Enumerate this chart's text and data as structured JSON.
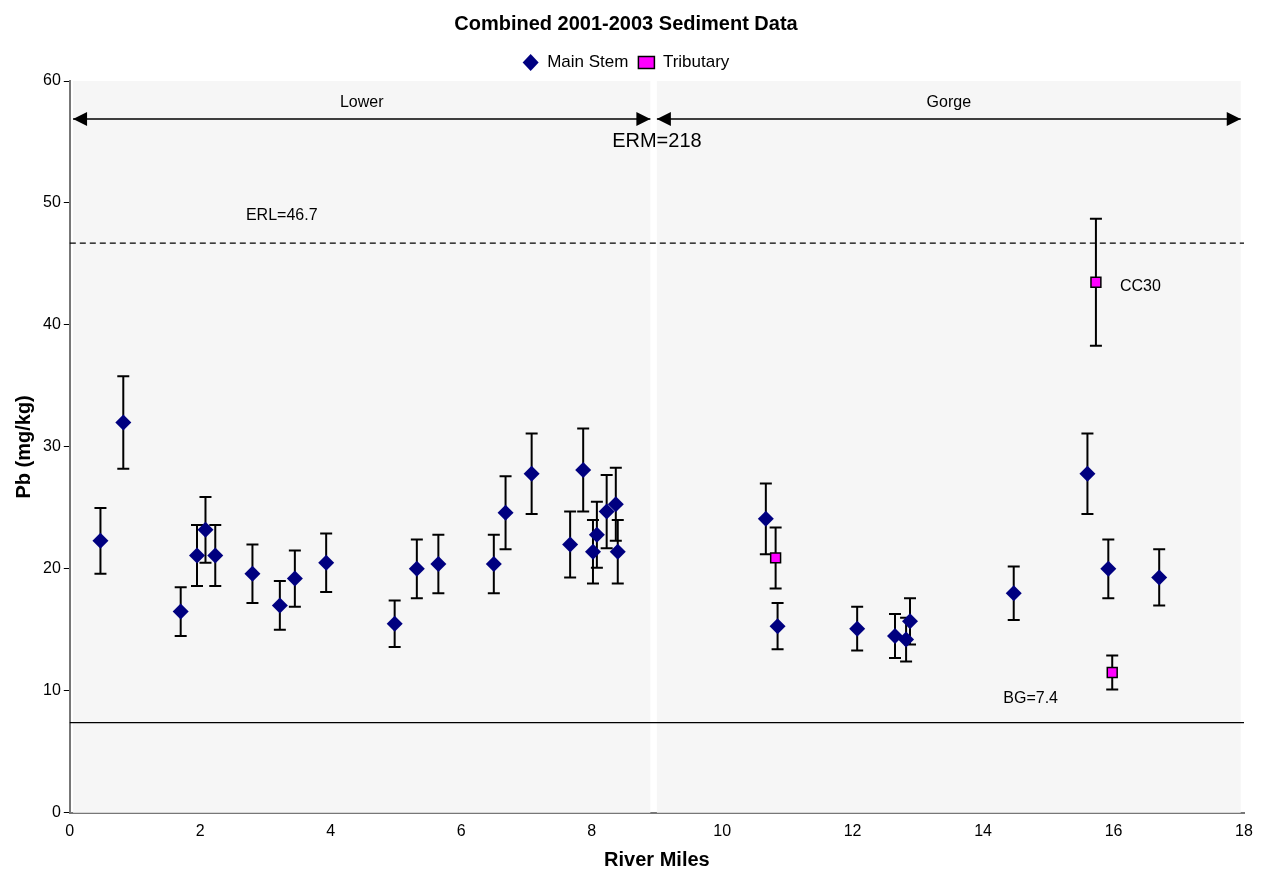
{
  "chart_data": {
    "type": "scatter",
    "title": "Combined 2001-2003 Sediment Data",
    "xlabel": "River Miles",
    "ylabel": "Pb (mg/kg)",
    "xlim": [
      0,
      18
    ],
    "xticks": [
      0,
      2,
      4,
      6,
      8,
      10,
      12,
      14,
      16,
      18
    ],
    "ylim": [
      0,
      60
    ],
    "yticks": [
      0,
      10,
      20,
      30,
      40,
      50,
      60
    ],
    "grid": false,
    "legend": "top",
    "series": [
      {
        "name": "Main Stem",
        "color": "#000080",
        "marker": "diamond",
        "x": [
          0.47,
          0.82,
          1.7,
          1.95,
          2.08,
          2.23,
          2.8,
          3.22,
          3.45,
          3.93,
          4.98,
          5.32,
          5.65,
          6.5,
          6.68,
          7.08,
          7.67,
          7.87,
          8.02,
          8.08,
          8.23,
          8.37,
          8.4,
          10.67,
          10.85,
          12.07,
          12.65,
          12.82,
          12.88,
          14.47,
          15.6,
          15.92,
          16.7
        ],
        "values": [
          22.3,
          32.0,
          16.5,
          21.1,
          23.2,
          21.1,
          19.6,
          17.0,
          19.2,
          20.5,
          15.5,
          20.0,
          20.4,
          20.4,
          24.6,
          27.8,
          22.0,
          28.1,
          21.4,
          22.8,
          24.7,
          25.3,
          21.4,
          24.1,
          15.3,
          15.1,
          14.5,
          14.2,
          15.7,
          18.0,
          27.8,
          20.0,
          19.3
        ],
        "errors": [
          2.7,
          3.8,
          2.0,
          2.5,
          2.7,
          2.5,
          2.4,
          2.0,
          2.3,
          2.4,
          1.9,
          2.4,
          2.4,
          2.4,
          3.0,
          3.3,
          2.7,
          3.4,
          2.6,
          2.7,
          3.0,
          3.0,
          2.6,
          2.9,
          1.9,
          1.8,
          1.8,
          1.8,
          1.9,
          2.2,
          3.3,
          2.4,
          2.3
        ]
      },
      {
        "name": "Tributary",
        "color": "#ff00ff",
        "marker": "square",
        "x": [
          10.82,
          15.73,
          15.98
        ],
        "values": [
          20.9,
          43.5,
          11.5
        ],
        "errors": [
          2.5,
          5.2,
          1.4
        ]
      }
    ],
    "ref_lines": [
      {
        "axis": "y",
        "value": 46.7,
        "label": "ERL=46.7",
        "line_style": "dashed",
        "color": "#000000"
      },
      {
        "axis": "y",
        "value": 7.4,
        "label": "BG=7.4",
        "line_style": "solid",
        "color": "#000000"
      }
    ],
    "bands": [
      {
        "axis": "x",
        "from": 0.05,
        "to": 8.9,
        "label": "Lower",
        "color": "#f6f6f6"
      },
      {
        "axis": "x",
        "from": 9.0,
        "to": 17.95,
        "label": "Gorge",
        "color": "#f6f6f6"
      }
    ],
    "annotations": [
      "ERM=218",
      {
        "text": "CC30",
        "x": 15.73,
        "y": 43.5
      }
    ]
  }
}
